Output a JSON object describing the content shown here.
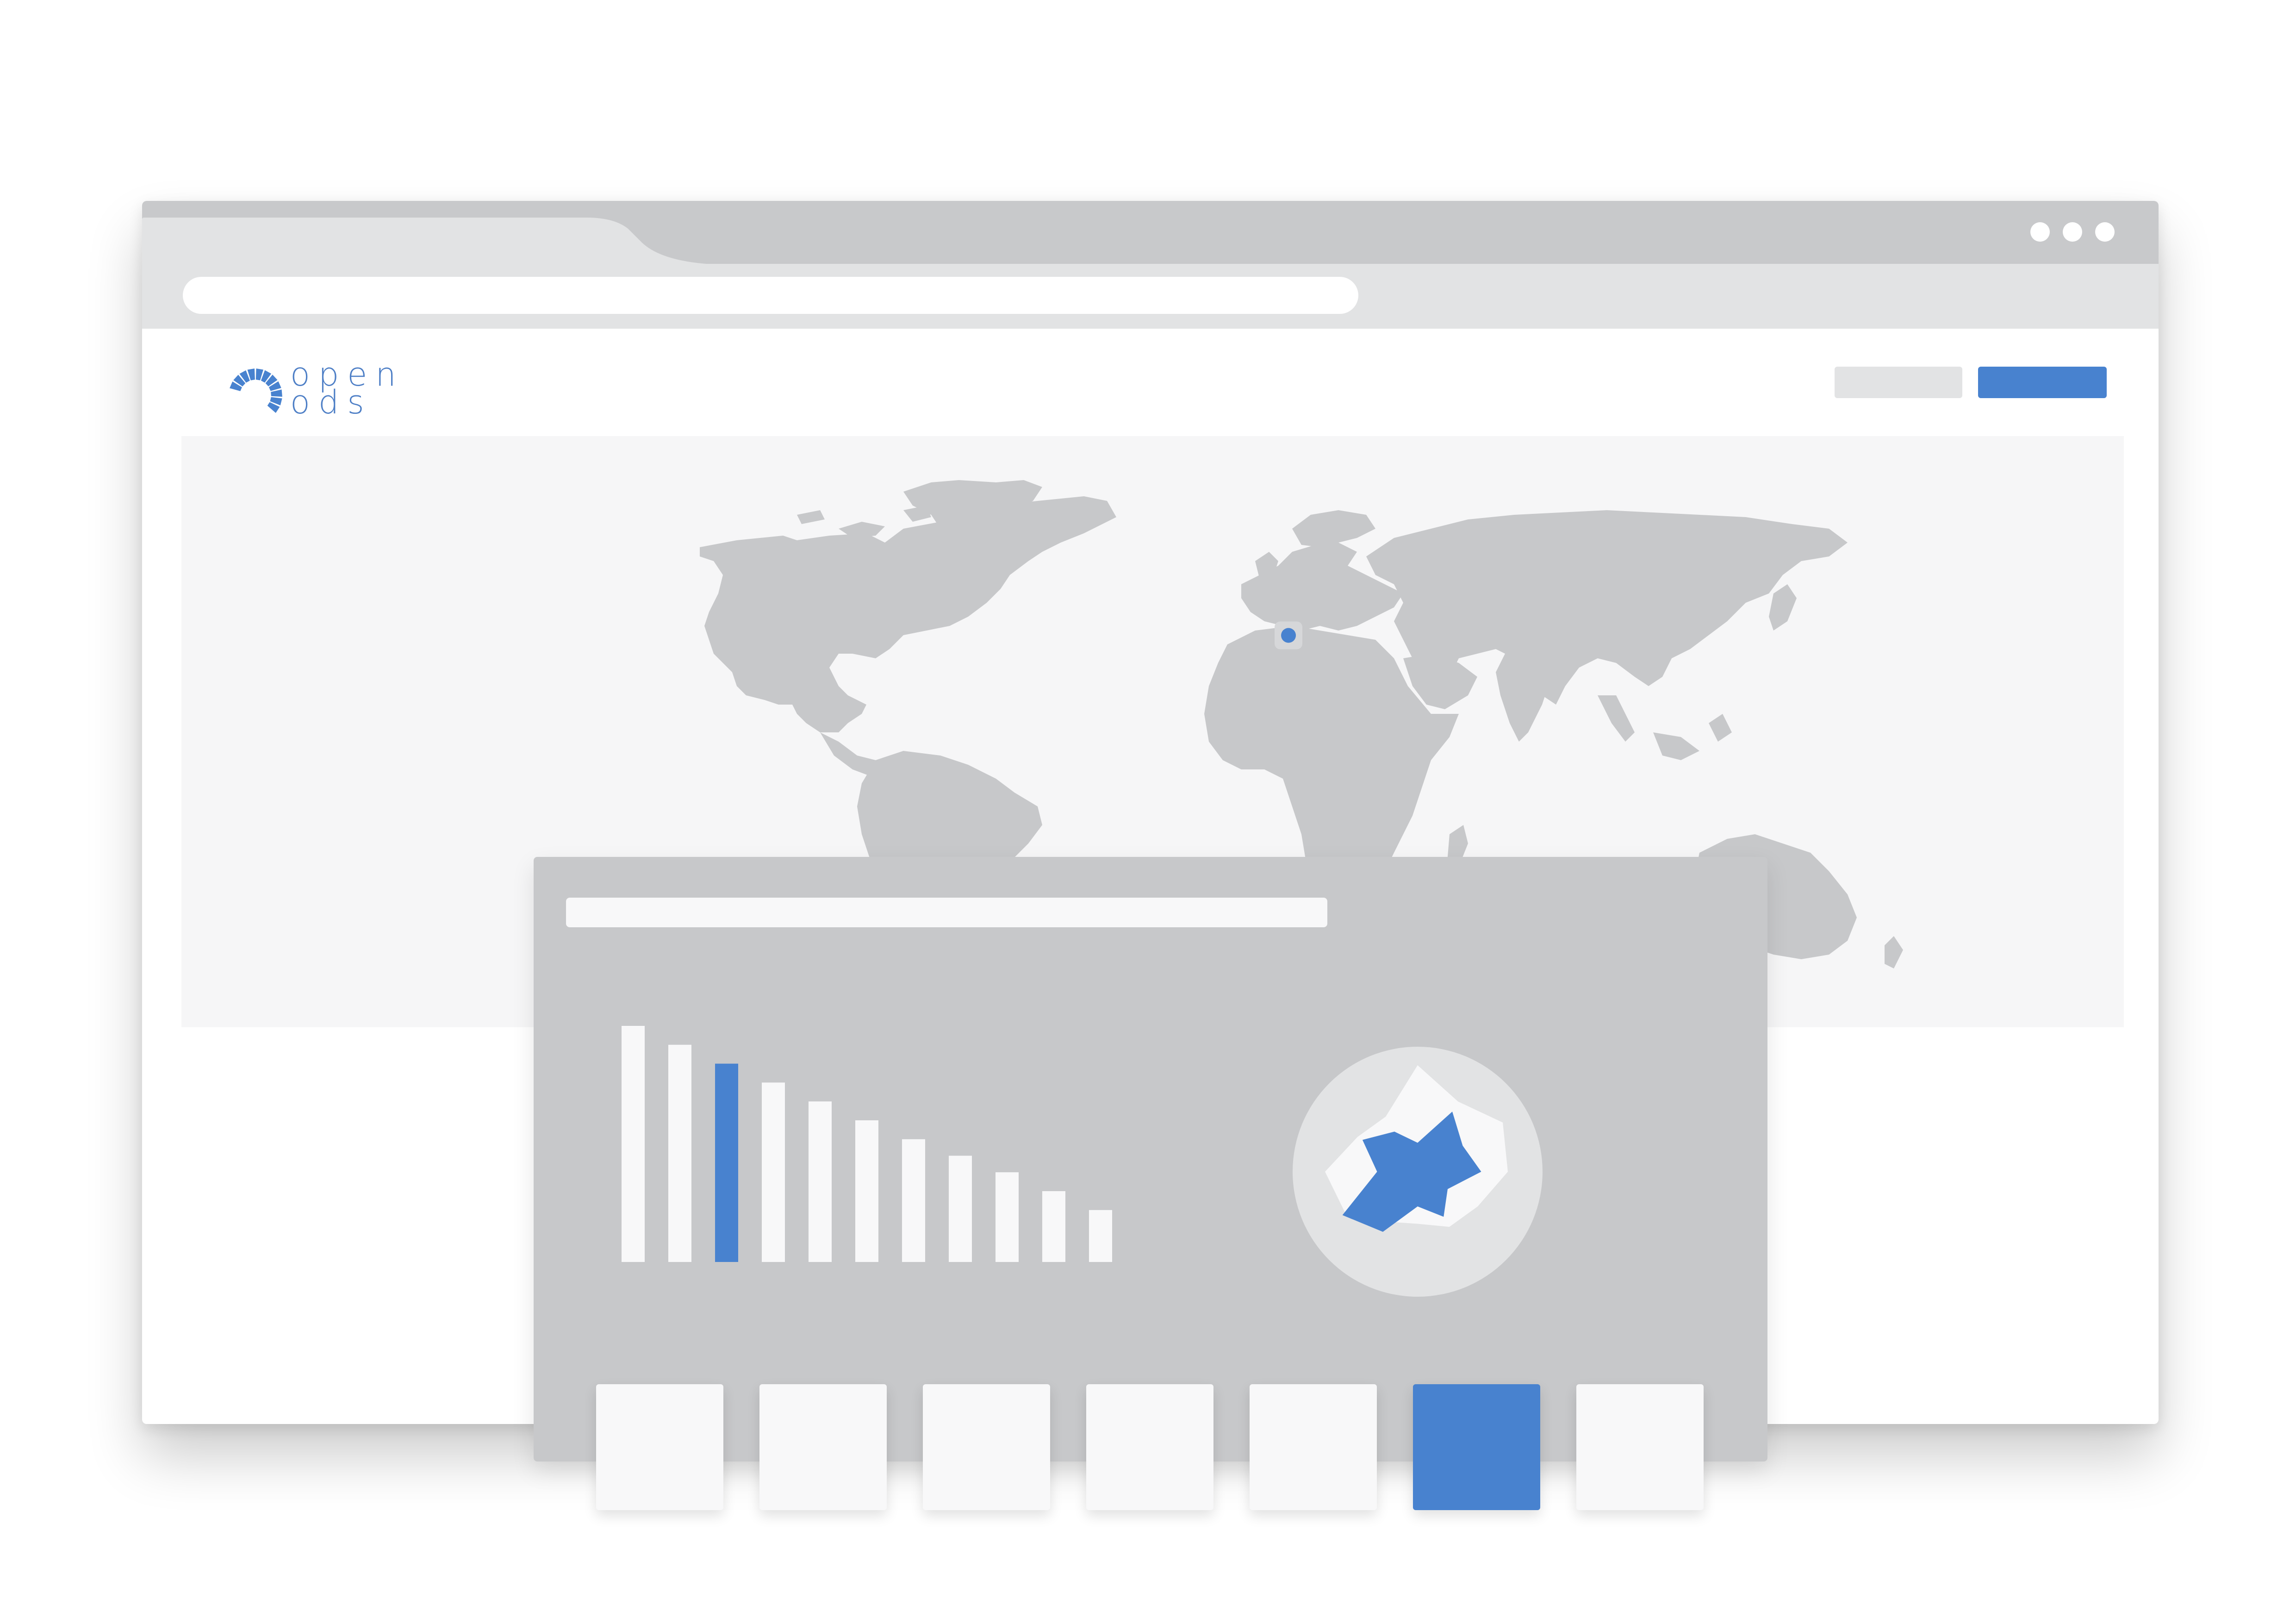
{
  "logo": {
    "line1": "open",
    "line2": "ods"
  },
  "colors": {
    "accent": "#4882cf",
    "chrome": "#c8c9cb",
    "toolbar": "#e2e3e4",
    "land": "#c7c8ca",
    "panel": "#c7c8ca",
    "light": "#f8f8f9"
  },
  "window": {
    "controls": [
      "more-dot-icon",
      "more-dot-icon",
      "more-dot-icon"
    ]
  },
  "header": {
    "buttons": [
      {
        "name": "secondary-button",
        "label": "",
        "active": false
      },
      {
        "name": "primary-button",
        "label": "",
        "active": true
      }
    ]
  },
  "map": {
    "markers": [
      {
        "name": "location-marker",
        "lon": -3.7,
        "lat": 40.4
      }
    ]
  },
  "chart_data": [
    {
      "type": "bar",
      "title": "",
      "values": [
        100,
        92,
        84,
        76,
        68,
        60,
        52,
        45,
        38,
        30,
        22
      ],
      "highlight_index": 2,
      "ylim": [
        0,
        100
      ]
    },
    {
      "type": "radar",
      "title": "",
      "axes": 12,
      "series": [
        {
          "values": [
            92,
            70,
            85,
            78,
            60,
            55,
            45,
            50,
            72,
            80,
            60,
            55
          ],
          "color": "#f8f8f9"
        },
        {
          "values": [
            25,
            60,
            45,
            55,
            30,
            45,
            30,
            60,
            75,
            35,
            55,
            40
          ],
          "color": "#4882cf"
        }
      ]
    }
  ],
  "tiles": [
    {
      "active": false
    },
    {
      "active": false
    },
    {
      "active": false
    },
    {
      "active": false
    },
    {
      "active": false
    },
    {
      "active": true
    },
    {
      "active": false
    }
  ]
}
